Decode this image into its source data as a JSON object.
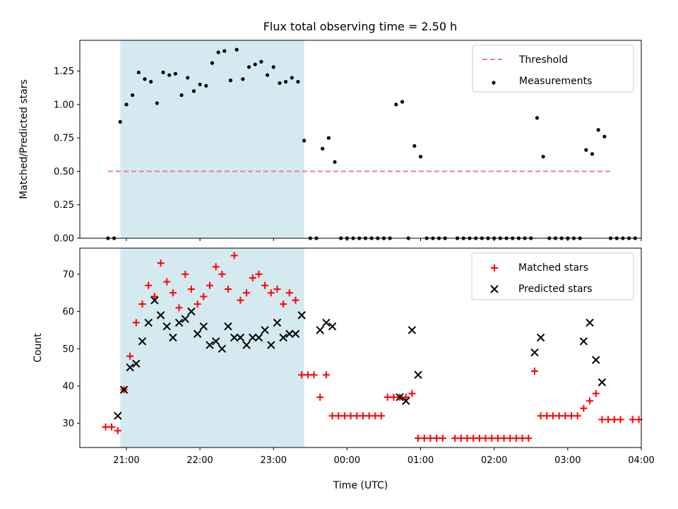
{
  "chart_data": [
    {
      "type": "scatter",
      "title": "Flux total observing time = 2.50 h",
      "xlabel": "",
      "ylabel": "Matched/Predicted stars",
      "x_unit": "time (UTC)",
      "xlim": [
        "20:22",
        "04:00"
      ],
      "ylim": [
        0,
        1.48
      ],
      "y_ticks": [
        "0.00",
        "0.25",
        "0.50",
        "0.75",
        "1.00",
        "1.25"
      ],
      "x_tick_labels": [],
      "shaded_span": {
        "start": "20:55",
        "end": "23:25",
        "color": "#d4eaf0"
      },
      "threshold": {
        "name": "Threshold",
        "value": 0.5,
        "start": "20:45",
        "end": "03:37",
        "color": "#f08080",
        "style": "dashed"
      },
      "legend": {
        "position": "top-right",
        "entries": [
          "Threshold",
          "Measurements"
        ]
      },
      "series": [
        {
          "name": "Measurements",
          "color": "#000000",
          "marker": "dot",
          "points": [
            [
              "20:45",
              0
            ],
            [
              "20:50",
              0
            ],
            [
              "20:55",
              0.87
            ],
            [
              "21:00",
              1.0
            ],
            [
              "21:05",
              1.07
            ],
            [
              "21:10",
              1.24
            ],
            [
              "21:15",
              1.19
            ],
            [
              "21:20",
              1.17
            ],
            [
              "21:25",
              1.01
            ],
            [
              "21:30",
              1.24
            ],
            [
              "21:35",
              1.22
            ],
            [
              "21:40",
              1.23
            ],
            [
              "21:45",
              1.07
            ],
            [
              "21:50",
              1.2
            ],
            [
              "21:55",
              1.1
            ],
            [
              "22:00",
              1.15
            ],
            [
              "22:05",
              1.14
            ],
            [
              "22:10",
              1.31
            ],
            [
              "22:15",
              1.39
            ],
            [
              "22:20",
              1.4
            ],
            [
              "22:25",
              1.18
            ],
            [
              "22:30",
              1.41
            ],
            [
              "22:35",
              1.19
            ],
            [
              "22:40",
              1.28
            ],
            [
              "22:45",
              1.3
            ],
            [
              "22:50",
              1.32
            ],
            [
              "22:55",
              1.22
            ],
            [
              "23:00",
              1.28
            ],
            [
              "23:05",
              1.16
            ],
            [
              "23:10",
              1.17
            ],
            [
              "23:15",
              1.2
            ],
            [
              "23:20",
              1.17
            ],
            [
              "23:25",
              0.73
            ],
            [
              "23:30",
              0
            ],
            [
              "23:35",
              0
            ],
            [
              "23:40",
              0.67
            ],
            [
              "23:45",
              0.75
            ],
            [
              "23:50",
              0.57
            ],
            [
              "23:55",
              0
            ],
            [
              "00:00",
              0
            ],
            [
              "00:05",
              0
            ],
            [
              "00:10",
              0
            ],
            [
              "00:15",
              0
            ],
            [
              "00:20",
              0
            ],
            [
              "00:25",
              0
            ],
            [
              "00:30",
              0
            ],
            [
              "00:35",
              0
            ],
            [
              "00:40",
              1.0
            ],
            [
              "00:45",
              1.02
            ],
            [
              "00:50",
              0
            ],
            [
              "00:55",
              0.69
            ],
            [
              "01:00",
              0.61
            ],
            [
              "01:05",
              0
            ],
            [
              "01:10",
              0
            ],
            [
              "01:15",
              0
            ],
            [
              "01:20",
              0
            ],
            [
              "01:30",
              0
            ],
            [
              "01:35",
              0
            ],
            [
              "01:40",
              0
            ],
            [
              "01:45",
              0
            ],
            [
              "01:50",
              0
            ],
            [
              "01:55",
              0
            ],
            [
              "02:00",
              0
            ],
            [
              "02:05",
              0
            ],
            [
              "02:10",
              0
            ],
            [
              "02:15",
              0
            ],
            [
              "02:20",
              0
            ],
            [
              "02:25",
              0
            ],
            [
              "02:30",
              0
            ],
            [
              "02:35",
              0.9
            ],
            [
              "02:40",
              0.61
            ],
            [
              "02:45",
              0
            ],
            [
              "02:50",
              0
            ],
            [
              "02:55",
              0
            ],
            [
              "03:00",
              0
            ],
            [
              "03:05",
              0
            ],
            [
              "03:10",
              0
            ],
            [
              "03:15",
              0.66
            ],
            [
              "03:20",
              0.63
            ],
            [
              "03:25",
              0.81
            ],
            [
              "03:30",
              0.76
            ],
            [
              "03:35",
              0
            ],
            [
              "03:40",
              0
            ],
            [
              "03:45",
              0
            ],
            [
              "03:50",
              0
            ],
            [
              "03:55",
              0
            ]
          ]
        }
      ]
    },
    {
      "type": "scatter",
      "title": "",
      "xlabel": "Time (UTC)",
      "ylabel": "Count",
      "xlim": [
        "20:22",
        "04:00"
      ],
      "ylim": [
        23.5,
        77
      ],
      "y_ticks": [
        "30",
        "40",
        "50",
        "60",
        "70"
      ],
      "x_tick_labels": [
        "21:00",
        "22:00",
        "23:00",
        "00:00",
        "01:00",
        "02:00",
        "03:00",
        "04:00"
      ],
      "shaded_span": {
        "start": "20:55",
        "end": "23:25",
        "color": "#d4eaf0"
      },
      "legend": {
        "position": "top-right",
        "entries": [
          "Matched stars",
          "Predicted stars"
        ]
      },
      "series": [
        {
          "name": "Matched stars",
          "color": "#ff0000",
          "marker": "plus",
          "points": [
            [
              "20:43",
              29
            ],
            [
              "20:48",
              29
            ],
            [
              "20:53",
              28
            ],
            [
              "20:58",
              39
            ],
            [
              "21:03",
              48
            ],
            [
              "21:08",
              57
            ],
            [
              "21:13",
              62
            ],
            [
              "21:18",
              67
            ],
            [
              "21:23",
              64
            ],
            [
              "21:28",
              73
            ],
            [
              "21:33",
              68
            ],
            [
              "21:38",
              65
            ],
            [
              "21:43",
              61
            ],
            [
              "21:48",
              70
            ],
            [
              "21:53",
              66
            ],
            [
              "21:58",
              62
            ],
            [
              "22:03",
              64
            ],
            [
              "22:08",
              67
            ],
            [
              "22:13",
              72
            ],
            [
              "22:18",
              70
            ],
            [
              "22:23",
              66
            ],
            [
              "22:28",
              75
            ],
            [
              "22:33",
              63
            ],
            [
              "22:38",
              65
            ],
            [
              "22:43",
              69
            ],
            [
              "22:48",
              70
            ],
            [
              "22:53",
              67
            ],
            [
              "22:58",
              65
            ],
            [
              "23:03",
              66
            ],
            [
              "23:08",
              62
            ],
            [
              "23:13",
              65
            ],
            [
              "23:18",
              63
            ],
            [
              "23:23",
              43
            ],
            [
              "23:28",
              43
            ],
            [
              "23:33",
              43
            ],
            [
              "23:38",
              37
            ],
            [
              "23:43",
              43
            ],
            [
              "23:48",
              32
            ],
            [
              "23:53",
              32
            ],
            [
              "23:58",
              32
            ],
            [
              "00:03",
              32
            ],
            [
              "00:08",
              32
            ],
            [
              "00:13",
              32
            ],
            [
              "00:18",
              32
            ],
            [
              "00:23",
              32
            ],
            [
              "00:28",
              32
            ],
            [
              "00:33",
              37
            ],
            [
              "00:38",
              37
            ],
            [
              "00:43",
              37
            ],
            [
              "00:48",
              37
            ],
            [
              "00:53",
              38
            ],
            [
              "00:58",
              26
            ],
            [
              "01:03",
              26
            ],
            [
              "01:08",
              26
            ],
            [
              "01:13",
              26
            ],
            [
              "01:18",
              26
            ],
            [
              "01:28",
              26
            ],
            [
              "01:33",
              26
            ],
            [
              "01:38",
              26
            ],
            [
              "01:43",
              26
            ],
            [
              "01:48",
              26
            ],
            [
              "01:53",
              26
            ],
            [
              "01:58",
              26
            ],
            [
              "02:03",
              26
            ],
            [
              "02:08",
              26
            ],
            [
              "02:13",
              26
            ],
            [
              "02:18",
              26
            ],
            [
              "02:23",
              26
            ],
            [
              "02:28",
              26
            ],
            [
              "02:33",
              44
            ],
            [
              "02:38",
              32
            ],
            [
              "02:43",
              32
            ],
            [
              "02:48",
              32
            ],
            [
              "02:53",
              32
            ],
            [
              "02:58",
              32
            ],
            [
              "03:03",
              32
            ],
            [
              "03:08",
              32
            ],
            [
              "03:13",
              34
            ],
            [
              "03:18",
              36
            ],
            [
              "03:23",
              38
            ],
            [
              "03:28",
              31
            ],
            [
              "03:33",
              31
            ],
            [
              "03:38",
              31
            ],
            [
              "03:43",
              31
            ],
            [
              "03:53",
              31
            ],
            [
              "03:58",
              31
            ]
          ]
        },
        {
          "name": "Predicted stars",
          "color": "#000000",
          "marker": "x",
          "points": [
            [
              "20:53",
              32
            ],
            [
              "20:58",
              39
            ],
            [
              "21:03",
              45
            ],
            [
              "21:08",
              46
            ],
            [
              "21:13",
              52
            ],
            [
              "21:18",
              57
            ],
            [
              "21:23",
              63
            ],
            [
              "21:28",
              59
            ],
            [
              "21:33",
              56
            ],
            [
              "21:38",
              53
            ],
            [
              "21:43",
              57
            ],
            [
              "21:48",
              58
            ],
            [
              "21:53",
              60
            ],
            [
              "21:58",
              54
            ],
            [
              "22:03",
              56
            ],
            [
              "22:08",
              51
            ],
            [
              "22:13",
              52
            ],
            [
              "22:18",
              50
            ],
            [
              "22:23",
              56
            ],
            [
              "22:28",
              53
            ],
            [
              "22:33",
              53
            ],
            [
              "22:38",
              51
            ],
            [
              "22:43",
              53
            ],
            [
              "22:48",
              53
            ],
            [
              "22:53",
              55
            ],
            [
              "22:58",
              51
            ],
            [
              "23:03",
              57
            ],
            [
              "23:08",
              53
            ],
            [
              "23:13",
              54
            ],
            [
              "23:18",
              54
            ],
            [
              "23:23",
              59
            ],
            [
              "23:38",
              55
            ],
            [
              "23:43",
              57
            ],
            [
              "23:48",
              56
            ],
            [
              "00:43",
              37
            ],
            [
              "00:48",
              36
            ],
            [
              "00:53",
              55
            ],
            [
              "00:58",
              43
            ],
            [
              "02:33",
              49
            ],
            [
              "02:38",
              53
            ],
            [
              "03:13",
              52
            ],
            [
              "03:18",
              57
            ],
            [
              "03:23",
              47
            ],
            [
              "03:28",
              41
            ]
          ]
        }
      ]
    }
  ]
}
